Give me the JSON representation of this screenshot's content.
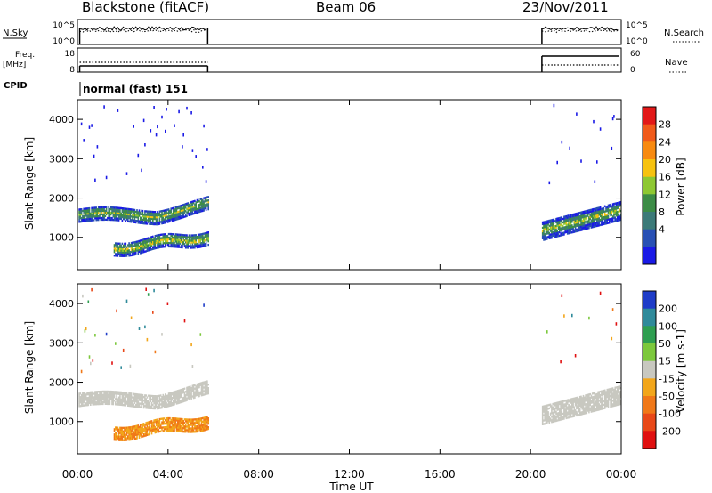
{
  "header": {
    "title": "Blackstone (fitACF)",
    "beam": "Beam 06",
    "date": "23/Nov/2011"
  },
  "labels": {
    "nsky": "N.Sky",
    "freq": "Freq.",
    "freq_unit": "[MHz]",
    "cpid": "CPID",
    "nsearch": "N.Search",
    "nave": "Nave",
    "cpid_value": "normal (fast) 151"
  },
  "aux_ticks": {
    "noise_left": [
      "10^5",
      "10^0"
    ],
    "noise_right": [
      "10^5",
      "10^0"
    ],
    "freq_left": [
      "18",
      "8"
    ],
    "nave_right": [
      "60",
      "0"
    ]
  },
  "chart_data": [
    {
      "type": "heatmap",
      "name": "power",
      "ylabel": "Slant Range [km]",
      "xlabel": "",
      "x_ticks": [
        "00:00",
        "04:00",
        "08:00",
        "12:00",
        "16:00",
        "20:00",
        "00:00"
      ],
      "x_range_hours": [
        0,
        24
      ],
      "y_ticks": [
        1000,
        2000,
        3000,
        4000
      ],
      "y_range_km": [
        180,
        4500
      ],
      "data_gaps_hours": [
        [
          5.75,
          20.5
        ]
      ],
      "colorbar": {
        "label": "Power [dB]",
        "ticks": [
          "28",
          "24",
          "20",
          "16",
          "12",
          "8",
          "4"
        ],
        "colors": [
          "#e21818",
          "#f05a1a",
          "#f88a10",
          "#f6c210",
          "#8ec832",
          "#3c8c46",
          "#3c7a78",
          "#2850b4",
          "#1a1ae6"
        ]
      }
    },
    {
      "type": "heatmap",
      "name": "velocity",
      "ylabel": "Slant Range [km]",
      "xlabel": "Time UT",
      "x_ticks": [
        "00:00",
        "04:00",
        "08:00",
        "12:00",
        "16:00",
        "20:00",
        "00:00"
      ],
      "x_range_hours": [
        0,
        24
      ],
      "y_ticks": [
        1000,
        2000,
        3000,
        4000
      ],
      "y_range_km": [
        180,
        4500
      ],
      "data_gaps_hours": [
        [
          5.75,
          20.5
        ]
      ],
      "colorbar": {
        "label": "Velocity [m s-1]",
        "ticks": [
          "200",
          "100",
          "50",
          "15",
          "-15",
          "-50",
          "-100",
          "-200"
        ],
        "colors": [
          "#1e3cc8",
          "#2f8a9a",
          "#2e9e50",
          "#7cc83c",
          "#c8c8c0",
          "#f2a61a",
          "#f07818",
          "#e84818",
          "#e01010"
        ]
      }
    }
  ]
}
